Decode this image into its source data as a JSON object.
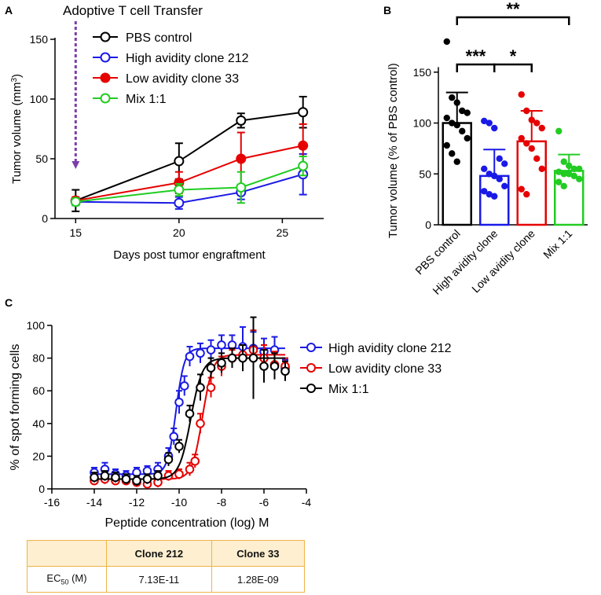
{
  "panels": {
    "a": "A",
    "b": "B",
    "c": "C"
  },
  "chart_data": [
    {
      "type": "line",
      "panel": "A",
      "annotation": "Adoptive T cell Transfer",
      "xlabel": "Days post tumor engraftment",
      "ylabel": "Tumor volume (mm",
      "ylabel_sup": "3",
      "ylabel_end": ")",
      "xlim": [
        14,
        27
      ],
      "ylim": [
        0,
        150
      ],
      "xticks": [
        15,
        20,
        25
      ],
      "yticks": [
        0,
        50,
        100,
        150
      ],
      "x": [
        15,
        20,
        23,
        26
      ],
      "series": [
        {
          "name": "PBS control",
          "color": "#000000",
          "marker": "open",
          "values": [
            15,
            48,
            82,
            89
          ],
          "err": [
            9,
            15,
            6,
            13
          ]
        },
        {
          "name": "High avidity clone 212",
          "color": "#1a1ae6",
          "marker": "open",
          "values": [
            14,
            13,
            22,
            37
          ],
          "err": [
            3,
            5,
            6,
            17
          ]
        },
        {
          "name": "Low avidity clone 33",
          "color": "#e60000",
          "marker": "filled",
          "values": [
            15,
            30,
            50,
            61
          ],
          "err": [
            3,
            9,
            22,
            18
          ]
        },
        {
          "name": "Mix 1:1",
          "color": "#22cc22",
          "marker": "open",
          "values": [
            14,
            24,
            26,
            44
          ],
          "err": [
            3,
            5,
            13,
            8
          ]
        }
      ]
    },
    {
      "type": "bar",
      "panel": "B",
      "ylabel": "Tumor volume (% of PBS control)",
      "ylim": [
        0,
        190
      ],
      "yticks": [
        0,
        50,
        100,
        150
      ],
      "categories": [
        "PBS control",
        "High avidity clone",
        "Low avidity clone",
        "Mix 1:1"
      ],
      "colors": [
        "#000000",
        "#1a1ae6",
        "#e60000",
        "#22cc22"
      ],
      "values": [
        100,
        48,
        82,
        53
      ],
      "err": [
        30,
        26,
        30,
        16
      ],
      "points": [
        [
          180,
          125,
          120,
          112,
          110,
          105,
          100,
          98,
          92,
          85,
          78,
          70,
          62
        ],
        [
          102,
          100,
          95,
          65,
          60,
          55,
          50,
          48,
          45,
          38,
          33,
          30,
          28
        ],
        [
          128,
          112,
          103,
          100,
          95,
          85,
          80,
          75,
          65,
          55,
          35,
          30
        ],
        [
          92,
          62,
          58,
          55,
          55,
          52,
          50,
          50,
          48,
          45,
          42,
          38
        ]
      ],
      "significance": [
        {
          "from": 0,
          "to": 3,
          "label": "**"
        },
        {
          "from": 0,
          "to": 1,
          "label": "***"
        },
        {
          "from": 1,
          "to": 2,
          "label": "*"
        }
      ]
    },
    {
      "type": "line",
      "panel": "C",
      "xlabel": "Peptide concentration (log) M",
      "ylabel": "% of spot forming cells",
      "xlim": [
        -16,
        -4
      ],
      "ylim": [
        0,
        100
      ],
      "xticks": [
        -16,
        -14,
        -12,
        -10,
        -8,
        -6,
        -4
      ],
      "yticks": [
        0,
        20,
        40,
        60,
        80,
        100
      ],
      "series": [
        {
          "name": "High avidity clone 212",
          "color": "#1a1ae6",
          "bottom": 9,
          "top": 86,
          "logEC50": -10.15,
          "hill": 2.2,
          "x": [
            -14,
            -13.5,
            -13,
            -12.5,
            -12,
            -11.5,
            -11,
            -10.5,
            -10.25,
            -10,
            -9.75,
            -9.5,
            -9,
            -8.5,
            -8,
            -7.5,
            -7,
            -6.5,
            -6,
            -5.5,
            -5
          ],
          "y": [
            10,
            12,
            9,
            8,
            10,
            11,
            12,
            20,
            32,
            53,
            63,
            81,
            83,
            85,
            88,
            88,
            87,
            86,
            84,
            85,
            74
          ],
          "err": [
            3,
            4,
            3,
            3,
            3,
            3,
            4,
            5,
            5,
            7,
            6,
            6,
            6,
            6,
            6,
            6,
            12,
            10,
            8,
            8,
            5
          ]
        },
        {
          "name": "Low avidity clone 33",
          "color": "#e60000",
          "bottom": 6,
          "top": 82,
          "logEC50": -8.9,
          "hill": 1.8,
          "x": [
            -14,
            -13.5,
            -13,
            -12.5,
            -12,
            -11.5,
            -11,
            -10.5,
            -10,
            -9.5,
            -9.25,
            -9,
            -8.5,
            -8,
            -7.5,
            -7,
            -6.5,
            -6,
            -5.5,
            -5
          ],
          "y": [
            5,
            6,
            5,
            5,
            4,
            3,
            4,
            8,
            9,
            12,
            17,
            40,
            62,
            75,
            80,
            82,
            85,
            80,
            76,
            75
          ],
          "err": [
            2,
            3,
            2,
            2,
            2,
            2,
            3,
            3,
            3,
            4,
            4,
            6,
            6,
            6,
            5,
            6,
            12,
            8,
            8,
            5
          ]
        },
        {
          "name": "Mix 1:1",
          "color": "#000000",
          "bottom": 6,
          "top": 80,
          "logEC50": -9.45,
          "hill": 1.6,
          "x": [
            -14,
            -13.5,
            -13,
            -12.5,
            -12,
            -11.5,
            -11,
            -10.5,
            -10,
            -9.5,
            -9,
            -8.5,
            -8,
            -7.5,
            -7,
            -6.5,
            -6,
            -5.5,
            -5
          ],
          "y": [
            7,
            8,
            7,
            6,
            5,
            6,
            8,
            18,
            26,
            46,
            62,
            74,
            77,
            80,
            80,
            80,
            75,
            75,
            72
          ],
          "err": [
            3,
            3,
            3,
            3,
            3,
            3,
            3,
            4,
            4,
            5,
            8,
            6,
            6,
            6,
            8,
            25,
            10,
            8,
            6
          ]
        }
      ]
    }
  ],
  "ec50_table": {
    "headers": [
      "",
      "Clone 212",
      "Clone 33"
    ],
    "row_label_main": "EC",
    "row_label_sub": "50",
    "row_label_end": " (M)",
    "values": [
      "7.13E-11",
      "1.28E-09"
    ]
  }
}
